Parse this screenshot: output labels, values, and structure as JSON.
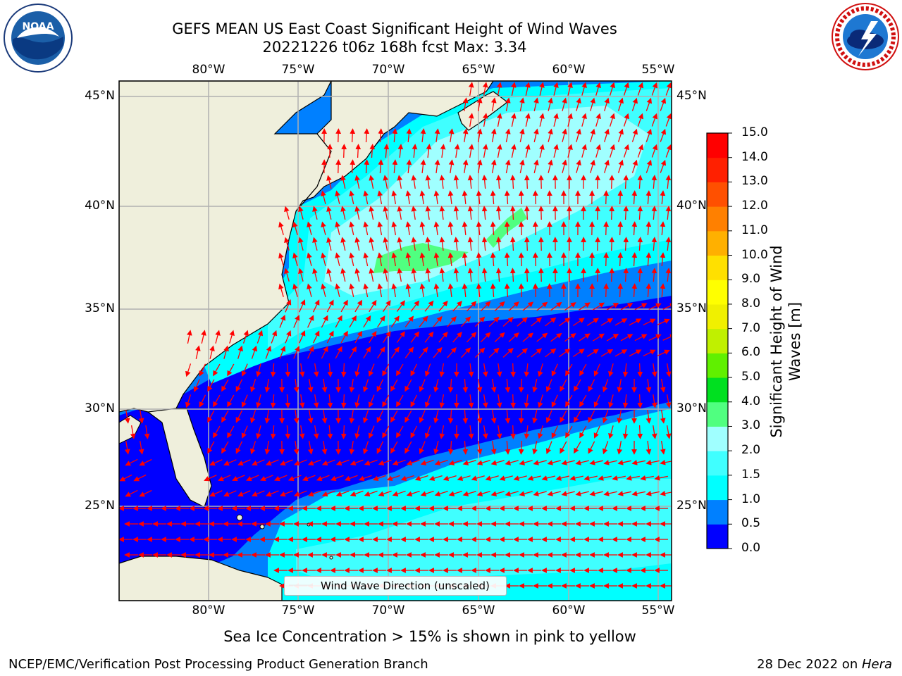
{
  "header": {
    "title_line1": "GEFS MEAN US East Coast Significant Height of Wind Waves",
    "title_line2": "20221226 t06z 168h fcst   Max: 3.34"
  },
  "logos": {
    "left": {
      "name": "noaa-logo",
      "text": "NOAA"
    },
    "right": {
      "name": "nws-logo"
    }
  },
  "map": {
    "lon_ticks": [
      "80°W",
      "75°W",
      "70°W",
      "65°W",
      "60°W",
      "55°W"
    ],
    "lat_ticks": [
      "45°N",
      "40°N",
      "35°N",
      "30°N",
      "25°N"
    ],
    "land_color": "#efefdc",
    "arrow_color": "#ff0000",
    "legend_label": "Wind Wave Direction (unscaled)"
  },
  "colorbar": {
    "label": "Significant Height of Wind Waves [m]",
    "ticks": [
      "15.0",
      "14.0",
      "13.0",
      "12.0",
      "11.0",
      "10.0",
      "9.0",
      "8.0",
      "7.0",
      "6.0",
      "5.0",
      "4.0",
      "3.0",
      "2.0",
      "1.5",
      "1.0",
      "0.5",
      "0.0"
    ],
    "colors": [
      "#0000ff",
      "#0080ff",
      "#00ffff",
      "#40ffff",
      "#a0ffff",
      "#50ff80",
      "#00e020",
      "#60f000",
      "#c0f000",
      "#f0f000",
      "#ffff00",
      "#ffe000",
      "#ffb000",
      "#ff8000",
      "#ff5000",
      "#ff2000",
      "#ff0000"
    ]
  },
  "subtitle": "Sea Ice Concentration > 15% is shown in pink to yellow",
  "footer": {
    "left": "NCEP/EMC/Verification Post Processing Product Generation Branch",
    "right_date": "28 Dec 2022 on ",
    "right_host": "Hera"
  }
}
